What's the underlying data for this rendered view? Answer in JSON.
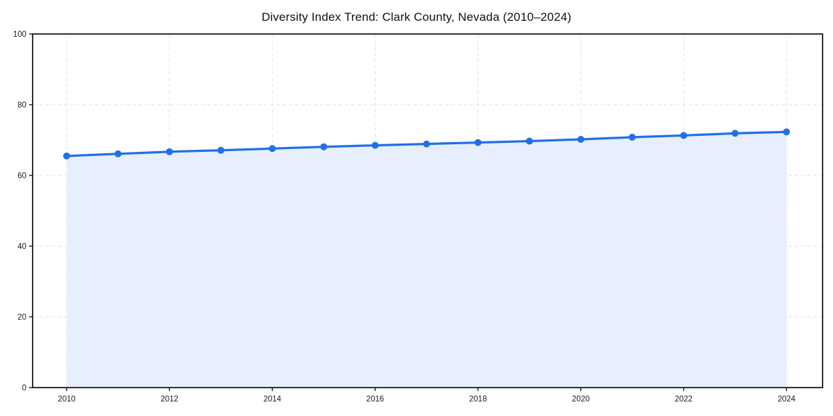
{
  "page": {
    "background": "#ffffff"
  },
  "chart_data": {
    "type": "area",
    "title": "Diversity Index Trend: Clark County, Nevada (2010–2024)",
    "x": [
      2010,
      2011,
      2012,
      2013,
      2014,
      2015,
      2016,
      2017,
      2018,
      2019,
      2020,
      2021,
      2022,
      2023,
      2024
    ],
    "series": [
      {
        "name": "Diversity Index",
        "values": [
          65.5,
          66.1,
          66.7,
          67.1,
          67.6,
          68.1,
          68.5,
          68.9,
          69.3,
          69.7,
          70.2,
          70.8,
          71.3,
          71.9,
          72.3
        ]
      }
    ],
    "xlabel": "",
    "ylabel": "",
    "ylim": [
      0,
      100
    ],
    "yticks": [
      0,
      20,
      40,
      60,
      80,
      100
    ],
    "xticks": [
      2010,
      2012,
      2014,
      2016,
      2018,
      2020,
      2022,
      2024
    ],
    "grid": true,
    "grid_style": "dashed",
    "legend": false,
    "colors": {
      "line": "#2170e8",
      "marker": "#2170e8",
      "area_fill": "#e7effc",
      "grid": "#e2e2e2",
      "axis": "#1a1a1a",
      "text": "#1a1a1a"
    }
  }
}
